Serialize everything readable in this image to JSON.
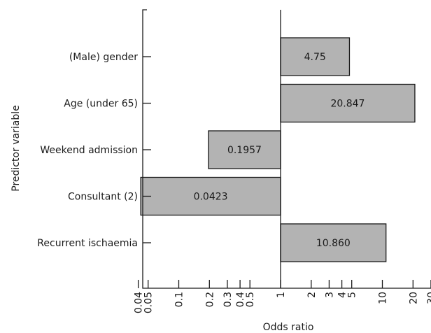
{
  "chart_data": {
    "type": "bar",
    "orientation": "horizontal",
    "x_scale": "log",
    "baseline": 1,
    "xlim": [
      0.04,
      30
    ],
    "xlabel": "Odds ratio",
    "ylabel": "Predictor variable",
    "grid": false,
    "categories": [
      "(Male) gender",
      "Age (under 65)",
      "Weekend admission",
      "Consultant (2)",
      "Recurrent ischaemia"
    ],
    "values": [
      4.75,
      20.847,
      0.1957,
      0.0423,
      10.86
    ],
    "value_labels": [
      "4.75",
      "20.847",
      "0.1957",
      "0.0423",
      "10.860"
    ],
    "x_ticks": [
      0.04,
      0.05,
      0.1,
      0.2,
      0.3,
      0.4,
      0.5,
      1,
      2,
      3,
      4,
      5,
      10,
      20,
      30
    ],
    "x_tick_labels": [
      "0.04",
      "0.05",
      "0.1",
      "0.2",
      "0.3",
      "0.4",
      "0.5",
      "1",
      "2",
      "3",
      "4",
      "5",
      "10",
      "20",
      "30"
    ]
  }
}
